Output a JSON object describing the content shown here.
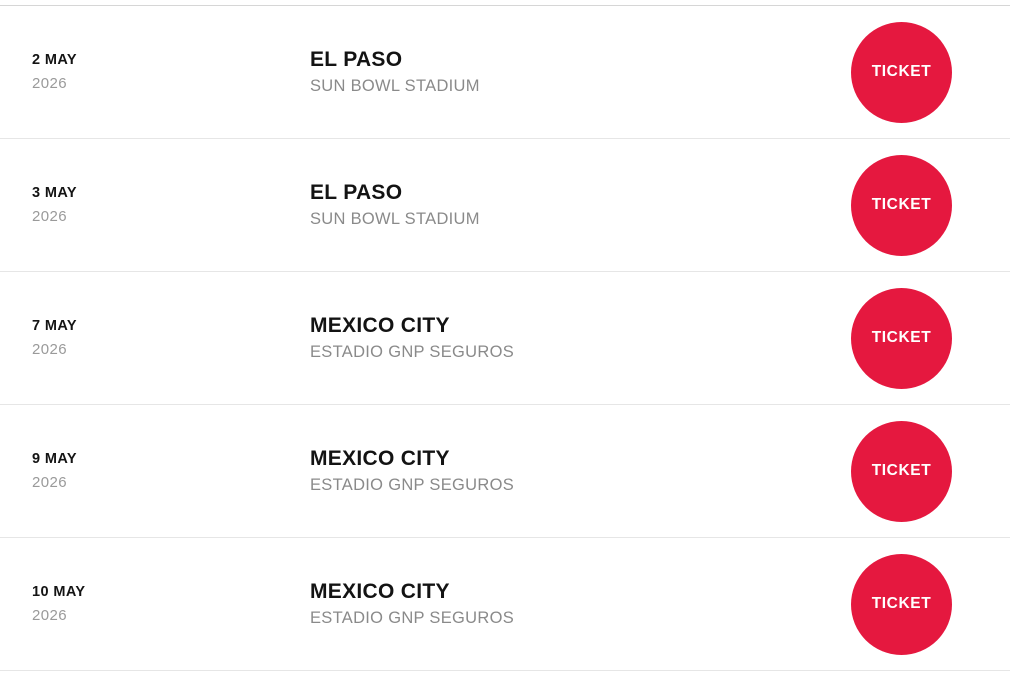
{
  "page": {
    "accent_color": "#e5183f",
    "divider_color": "#e6e6e6"
  },
  "tour_dates": {
    "rows": [
      {
        "day": "2 MAY",
        "year": "2026",
        "city": "EL PASO",
        "venue": "SUN BOWL STADIUM",
        "ticket_label": "TICKET"
      },
      {
        "day": "3 MAY",
        "year": "2026",
        "city": "EL PASO",
        "venue": "SUN BOWL STADIUM",
        "ticket_label": "TICKET"
      },
      {
        "day": "7 MAY",
        "year": "2026",
        "city": "MEXICO CITY",
        "venue": "ESTADIO GNP SEGUROS",
        "ticket_label": "TICKET"
      },
      {
        "day": "9 MAY",
        "year": "2026",
        "city": "MEXICO CITY",
        "venue": "ESTADIO GNP SEGUROS",
        "ticket_label": "TICKET"
      },
      {
        "day": "10 MAY",
        "year": "2026",
        "city": "MEXICO CITY",
        "venue": "ESTADIO GNP SEGUROS",
        "ticket_label": "TICKET"
      }
    ]
  }
}
